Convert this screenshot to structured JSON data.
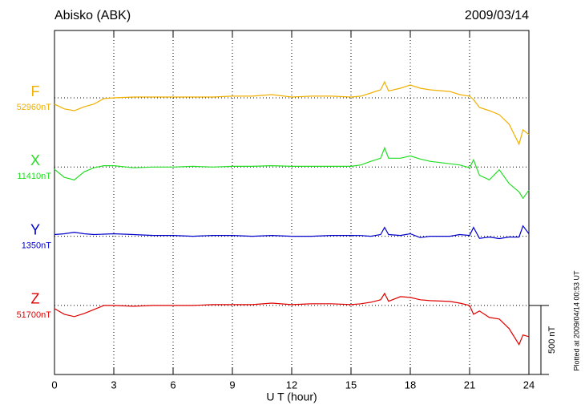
{
  "chart_data": {
    "type": "line",
    "title": "Abisko (ABK)",
    "date": "2009/03/14",
    "xlabel": "U T (hour)",
    "footnote": "Plotted at 2009/04/14 00:53 UT",
    "xlim": [
      0,
      24
    ],
    "xticks": [
      0,
      3,
      6,
      9,
      12,
      15,
      18,
      21,
      24
    ],
    "grid": true,
    "scale_bar": {
      "value": 500,
      "label": "500 nT"
    },
    "x": [
      0,
      0.5,
      1,
      1.5,
      2,
      2.5,
      3,
      4,
      5,
      6,
      7,
      8,
      9,
      10,
      11,
      12,
      13,
      14,
      15,
      15.5,
      16,
      16.5,
      16.7,
      16.9,
      17.5,
      18,
      18.5,
      19,
      20,
      20.5,
      21,
      21.2,
      21.5,
      22,
      22.5,
      23,
      23.5,
      23.7,
      24
    ],
    "series": [
      {
        "name": "F",
        "color": "#f0b000",
        "baseline": {
          "value": 52960,
          "label": "52960nT"
        },
        "values": [
          52914,
          52880,
          52867,
          52895,
          52915,
          52955,
          52960,
          52966,
          52966,
          52966,
          52966,
          52966,
          52972,
          52972,
          52983,
          52966,
          52972,
          52972,
          52966,
          52972,
          52995,
          53018,
          53076,
          53010,
          53030,
          53053,
          53030,
          53018,
          53006,
          52983,
          52972,
          52948,
          52890,
          52867,
          52838,
          52769,
          52624,
          52728,
          52694
        ]
      },
      {
        "name": "X",
        "color": "#22dd22",
        "baseline": {
          "value": 11410,
          "label": "11410nT"
        },
        "values": [
          11393,
          11335,
          11317,
          11375,
          11405,
          11420,
          11420,
          11405,
          11410,
          11410,
          11415,
          11410,
          11415,
          11415,
          11420,
          11415,
          11415,
          11415,
          11415,
          11425,
          11451,
          11474,
          11549,
          11474,
          11474,
          11491,
          11468,
          11451,
          11434,
          11425,
          11405,
          11462,
          11350,
          11317,
          11390,
          11290,
          11230,
          11184,
          11242
        ]
      },
      {
        "name": "Y",
        "color": "#0000cc",
        "baseline": {
          "value": 1350,
          "label": "1350nT"
        },
        "values": [
          1362,
          1368,
          1379,
          1368,
          1362,
          1365,
          1368,
          1362,
          1356,
          1356,
          1350,
          1356,
          1356,
          1350,
          1356,
          1350,
          1350,
          1356,
          1356,
          1355,
          1350,
          1362,
          1414,
          1362,
          1356,
          1368,
          1340,
          1350,
          1350,
          1362,
          1356,
          1414,
          1335,
          1344,
          1333,
          1344,
          1344,
          1425,
          1368
        ]
      },
      {
        "name": "Z",
        "color": "#e00000",
        "baseline": {
          "value": 51700,
          "label": "51700nT"
        },
        "values": [
          51677,
          51636,
          51619,
          51642,
          51671,
          51700,
          51700,
          51694,
          51700,
          51700,
          51700,
          51706,
          51706,
          51706,
          51717,
          51706,
          51712,
          51712,
          51706,
          51712,
          51723,
          51741,
          51787,
          51730,
          51764,
          51758,
          51741,
          51735,
          51729,
          51717,
          51700,
          51636,
          51660,
          51613,
          51602,
          51532,
          51416,
          51486,
          51474
        ]
      }
    ]
  }
}
